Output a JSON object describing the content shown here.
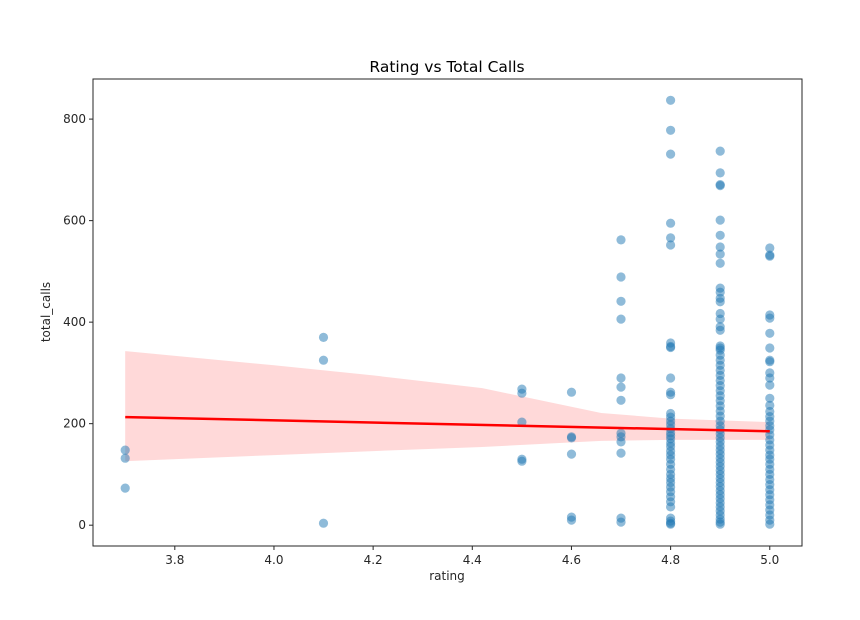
{
  "chart_data": {
    "type": "scatter",
    "title": "Rating vs Total Calls",
    "xlabel": "rating",
    "ylabel": "total_calls",
    "xlim": [
      3.635,
      5.065
    ],
    "ylim": [
      -41,
      879
    ],
    "xticks": [
      3.8,
      4.0,
      4.2,
      4.4,
      4.6,
      4.8,
      5.0
    ],
    "xtick_labels": [
      "3.8",
      "4.0",
      "4.2",
      "4.4",
      "4.6",
      "4.8",
      "5.0"
    ],
    "yticks": [
      0,
      200,
      400,
      600,
      800
    ],
    "ytick_labels": [
      "0",
      "200",
      "400",
      "600",
      "800"
    ],
    "grid": false,
    "legend": "none",
    "colors": {
      "points": "#1f77b4",
      "regression_line": "#ff0000",
      "confidence_band": "#ffcccc",
      "axis": "#262626"
    },
    "series": [
      {
        "name": "observations",
        "points": [
          [
            3.7,
            148
          ],
          [
            3.7,
            132
          ],
          [
            3.7,
            73
          ],
          [
            4.1,
            370
          ],
          [
            4.1,
            325
          ],
          [
            4.1,
            4
          ],
          [
            4.5,
            268
          ],
          [
            4.5,
            260
          ],
          [
            4.5,
            203
          ],
          [
            4.5,
            130
          ],
          [
            4.5,
            126
          ],
          [
            4.6,
            262
          ],
          [
            4.6,
            174
          ],
          [
            4.6,
            172
          ],
          [
            4.6,
            140
          ],
          [
            4.6,
            16
          ],
          [
            4.6,
            10
          ],
          [
            4.7,
            562
          ],
          [
            4.7,
            489
          ],
          [
            4.7,
            441
          ],
          [
            4.7,
            406
          ],
          [
            4.7,
            290
          ],
          [
            4.7,
            272
          ],
          [
            4.7,
            246
          ],
          [
            4.7,
            181
          ],
          [
            4.7,
            174
          ],
          [
            4.7,
            164
          ],
          [
            4.7,
            142
          ],
          [
            4.7,
            14
          ],
          [
            4.7,
            6
          ],
          [
            4.8,
            837
          ],
          [
            4.8,
            778
          ],
          [
            4.8,
            731
          ],
          [
            4.8,
            595
          ],
          [
            4.8,
            566
          ],
          [
            4.8,
            552
          ],
          [
            4.8,
            359
          ],
          [
            4.8,
            352
          ],
          [
            4.8,
            350
          ],
          [
            4.8,
            290
          ],
          [
            4.8,
            262
          ],
          [
            4.8,
            257
          ],
          [
            4.8,
            220
          ],
          [
            4.8,
            213
          ],
          [
            4.8,
            205
          ],
          [
            4.8,
            198
          ],
          [
            4.8,
            190
          ],
          [
            4.8,
            182
          ],
          [
            4.8,
            176
          ],
          [
            4.8,
            170
          ],
          [
            4.8,
            162
          ],
          [
            4.8,
            155
          ],
          [
            4.8,
            146
          ],
          [
            4.8,
            138
          ],
          [
            4.8,
            130
          ],
          [
            4.8,
            120
          ],
          [
            4.8,
            110
          ],
          [
            4.8,
            100
          ],
          [
            4.8,
            92
          ],
          [
            4.8,
            84
          ],
          [
            4.8,
            75
          ],
          [
            4.8,
            66
          ],
          [
            4.8,
            56
          ],
          [
            4.8,
            46
          ],
          [
            4.8,
            36
          ],
          [
            4.8,
            14
          ],
          [
            4.8,
            8
          ],
          [
            4.8,
            4
          ],
          [
            4.8,
            2
          ],
          [
            4.9,
            737
          ],
          [
            4.9,
            694
          ],
          [
            4.9,
            671
          ],
          [
            4.9,
            669
          ],
          [
            4.9,
            601
          ],
          [
            4.9,
            571
          ],
          [
            4.9,
            548
          ],
          [
            4.9,
            534
          ],
          [
            4.9,
            516
          ],
          [
            4.9,
            467
          ],
          [
            4.9,
            459
          ],
          [
            4.9,
            447
          ],
          [
            4.9,
            440
          ],
          [
            4.9,
            417
          ],
          [
            4.9,
            406
          ],
          [
            4.9,
            391
          ],
          [
            4.9,
            384
          ],
          [
            4.9,
            353
          ],
          [
            4.9,
            349
          ],
          [
            4.9,
            345
          ],
          [
            4.9,
            335
          ],
          [
            4.9,
            325
          ],
          [
            4.9,
            315
          ],
          [
            4.9,
            305
          ],
          [
            4.9,
            295
          ],
          [
            4.9,
            285
          ],
          [
            4.9,
            275
          ],
          [
            4.9,
            265
          ],
          [
            4.9,
            255
          ],
          [
            4.9,
            245
          ],
          [
            4.9,
            235
          ],
          [
            4.9,
            225
          ],
          [
            4.9,
            215
          ],
          [
            4.9,
            205
          ],
          [
            4.9,
            196
          ],
          [
            4.9,
            188
          ],
          [
            4.9,
            180
          ],
          [
            4.9,
            172
          ],
          [
            4.9,
            164
          ],
          [
            4.9,
            156
          ],
          [
            4.9,
            148
          ],
          [
            4.9,
            140
          ],
          [
            4.9,
            132
          ],
          [
            4.9,
            124
          ],
          [
            4.9,
            116
          ],
          [
            4.9,
            108
          ],
          [
            4.9,
            100
          ],
          [
            4.9,
            92
          ],
          [
            4.9,
            84
          ],
          [
            4.9,
            76
          ],
          [
            4.9,
            68
          ],
          [
            4.9,
            60
          ],
          [
            4.9,
            52
          ],
          [
            4.9,
            44
          ],
          [
            4.9,
            36
          ],
          [
            4.9,
            28
          ],
          [
            4.9,
            20
          ],
          [
            4.9,
            12
          ],
          [
            4.9,
            6
          ],
          [
            4.9,
            2
          ],
          [
            5.0,
            546
          ],
          [
            5.0,
            532
          ],
          [
            5.0,
            530
          ],
          [
            5.0,
            414
          ],
          [
            5.0,
            408
          ],
          [
            5.0,
            378
          ],
          [
            5.0,
            349
          ],
          [
            5.0,
            325
          ],
          [
            5.0,
            322
          ],
          [
            5.0,
            300
          ],
          [
            5.0,
            290
          ],
          [
            5.0,
            276
          ],
          [
            5.0,
            250
          ],
          [
            5.0,
            236
          ],
          [
            5.0,
            224
          ],
          [
            5.0,
            214
          ],
          [
            5.0,
            205
          ],
          [
            5.0,
            196
          ],
          [
            5.0,
            188
          ],
          [
            5.0,
            178
          ],
          [
            5.0,
            168
          ],
          [
            5.0,
            158
          ],
          [
            5.0,
            148
          ],
          [
            5.0,
            138
          ],
          [
            5.0,
            130
          ],
          [
            5.0,
            120
          ],
          [
            5.0,
            110
          ],
          [
            5.0,
            100
          ],
          [
            5.0,
            90
          ],
          [
            5.0,
            80
          ],
          [
            5.0,
            70
          ],
          [
            5.0,
            60
          ],
          [
            5.0,
            50
          ],
          [
            5.0,
            40
          ],
          [
            5.0,
            30
          ],
          [
            5.0,
            20
          ],
          [
            5.0,
            10
          ],
          [
            5.0,
            2
          ]
        ]
      }
    ],
    "regression": {
      "x": [
        3.7,
        5.0
      ],
      "y": [
        213,
        185
      ]
    },
    "confidence_band": {
      "x": [
        3.7,
        4.0,
        4.2,
        4.42,
        4.66,
        4.8,
        5.0
      ],
      "lower": [
        126,
        138,
        146,
        154,
        166,
        168,
        168
      ],
      "upper": [
        343,
        315,
        295,
        270,
        221,
        210,
        203
      ]
    }
  }
}
